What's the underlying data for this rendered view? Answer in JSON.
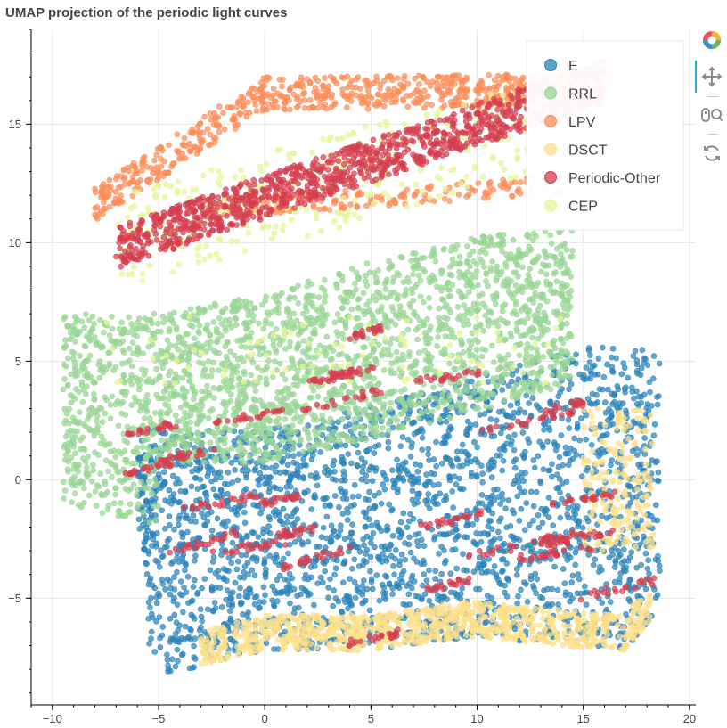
{
  "chart_data": {
    "type": "scatter",
    "title": "UMAP projection of the periodic light curves",
    "xlabel": "",
    "ylabel": "",
    "xlim": [
      -11,
      20.3
    ],
    "ylim": [
      -9.5,
      19
    ],
    "xticks": [
      -10,
      -5,
      0,
      5,
      10,
      15,
      20
    ],
    "yticks": [
      -5,
      0,
      5,
      10,
      15
    ],
    "grid": true,
    "legend_position": "top-right",
    "series": [
      {
        "name": "E",
        "color": "#2b83ba"
      },
      {
        "name": "RRL",
        "color": "#99d594"
      },
      {
        "name": "LPV",
        "color": "#fc8d59"
      },
      {
        "name": "DSCT",
        "color": "#fee08b"
      },
      {
        "name": "Periodic-Other",
        "color": "#d53e4f"
      },
      {
        "name": "CEP",
        "color": "#e6f598"
      }
    ]
  },
  "tick_labels": {
    "x": [
      "−10",
      "−5",
      "0",
      "5",
      "10",
      "15",
      "20"
    ],
    "y": [
      "−5",
      "0",
      "5",
      "10",
      "15"
    ]
  },
  "toolbar": {
    "tools": [
      "bokeh-logo-icon",
      "pan-icon",
      "wheel-zoom-icon",
      "reset-icon"
    ]
  }
}
